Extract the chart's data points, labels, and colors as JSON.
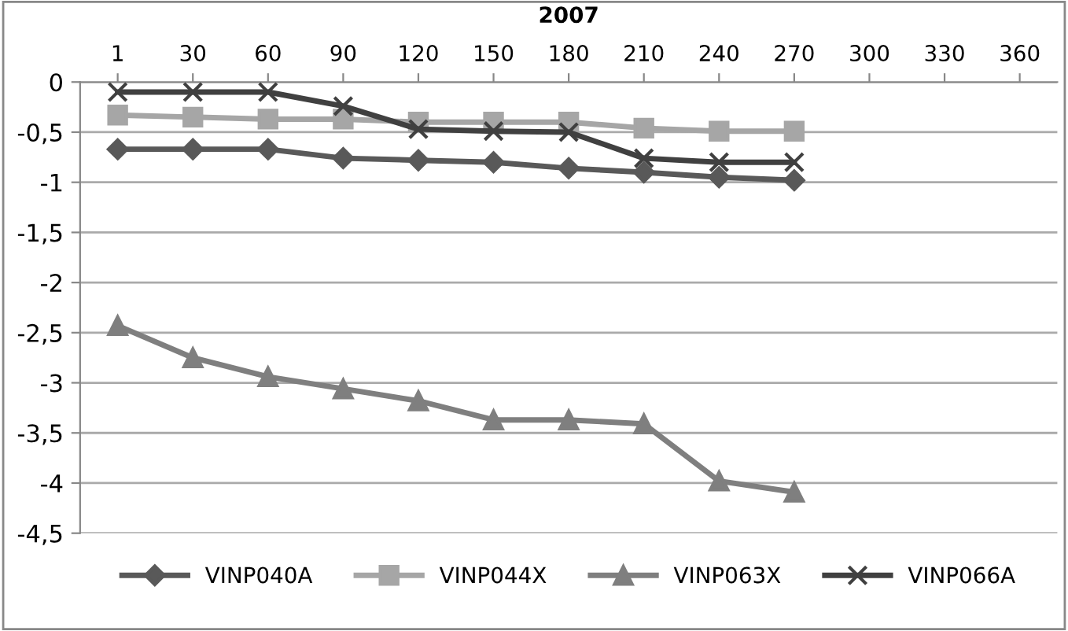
{
  "chart_data": {
    "type": "line",
    "title": "2007",
    "categories": [
      "1",
      "30",
      "60",
      "90",
      "120",
      "150",
      "180",
      "210",
      "240",
      "270",
      "300",
      "330",
      "360"
    ],
    "series": [
      {
        "name": "VINP040A",
        "color": "#595959",
        "marker": "diamond",
        "values": [
          -0.67,
          -0.67,
          -0.67,
          -0.76,
          -0.78,
          -0.8,
          -0.86,
          -0.9,
          -0.95,
          -0.98,
          null,
          null,
          null
        ]
      },
      {
        "name": "VINP044X",
        "color": "#a6a6a6",
        "marker": "square",
        "values": [
          -0.33,
          -0.35,
          -0.37,
          -0.37,
          -0.4,
          -0.4,
          -0.4,
          -0.46,
          -0.49,
          -0.49,
          null,
          null,
          null
        ]
      },
      {
        "name": "VINP063X",
        "color": "#7f7f7f",
        "marker": "triangle",
        "values": [
          -2.43,
          -2.75,
          -2.94,
          -3.06,
          -3.18,
          -3.37,
          -3.37,
          -3.41,
          -3.98,
          -4.09,
          null,
          null,
          null
        ]
      },
      {
        "name": "VINP066A",
        "color": "#404040",
        "marker": "cross",
        "values": [
          -0.1,
          -0.1,
          -0.1,
          -0.24,
          -0.47,
          -0.49,
          -0.5,
          -0.76,
          -0.8,
          -0.8,
          null,
          null,
          null
        ]
      }
    ],
    "ylim": [
      -4.5,
      0
    ],
    "yticks": [
      {
        "value": 0,
        "label": "0"
      },
      {
        "value": -0.5,
        "label": "-0,5"
      },
      {
        "value": -1,
        "label": "-1"
      },
      {
        "value": -1.5,
        "label": "-1,5"
      },
      {
        "value": -2,
        "label": "-2"
      },
      {
        "value": -2.5,
        "label": "-2,5"
      },
      {
        "value": -3,
        "label": "-3"
      },
      {
        "value": -3.5,
        "label": "-3,5"
      },
      {
        "value": -4,
        "label": "-4"
      },
      {
        "value": -4.5,
        "label": "-4,5"
      }
    ],
    "grid": "y",
    "legend": "bottom",
    "line_style": "solid"
  }
}
